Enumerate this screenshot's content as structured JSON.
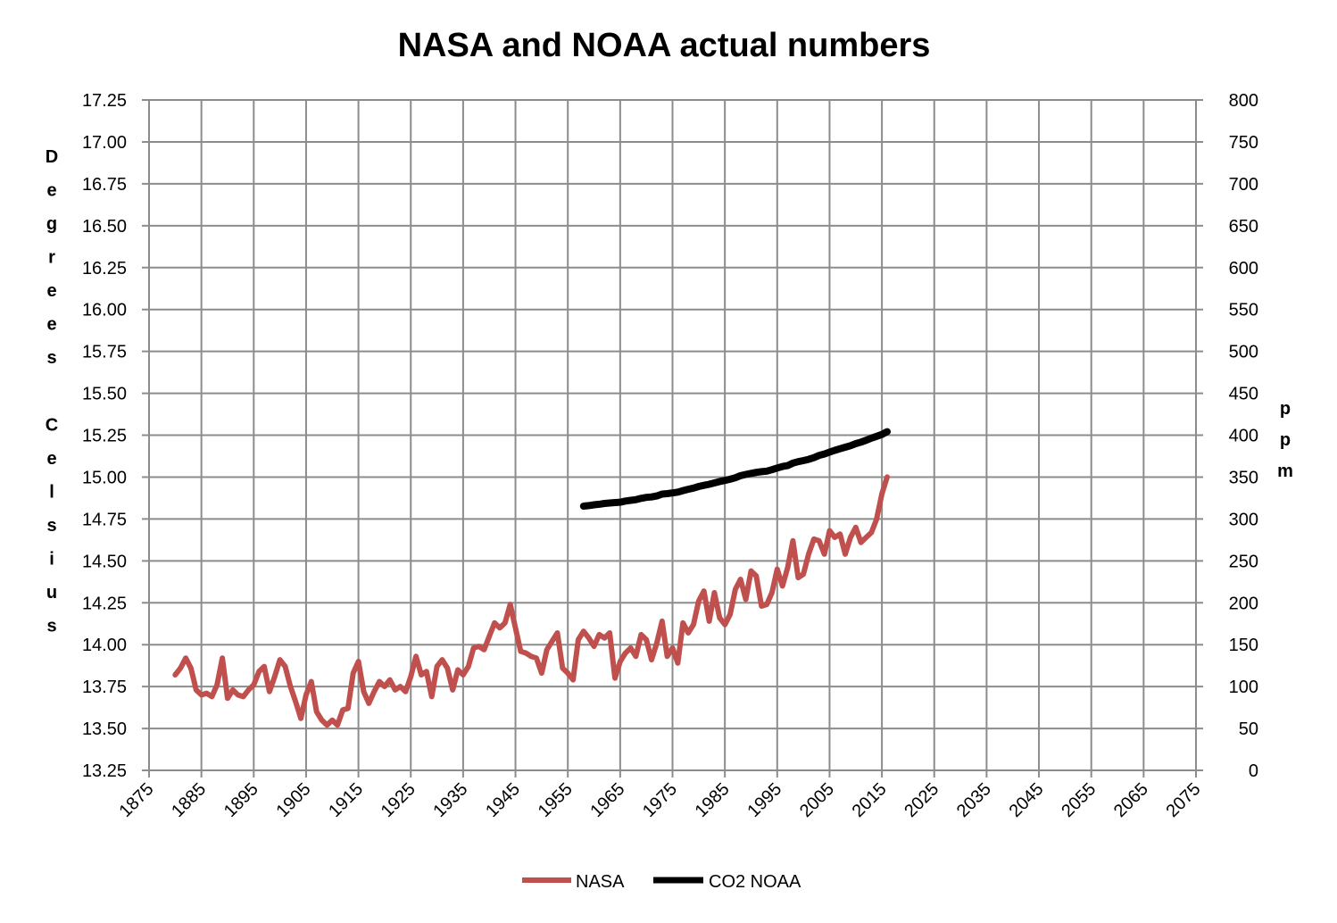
{
  "chart_data": {
    "type": "line",
    "title": "NASA and NOAA actual numbers",
    "y_left": {
      "label": "Degrees Celsius",
      "range": [
        13.25,
        17.25
      ],
      "ticks": [
        "13.25",
        "13.50",
        "13.75",
        "14.00",
        "14.25",
        "14.50",
        "14.75",
        "15.00",
        "15.25",
        "15.50",
        "15.75",
        "16.00",
        "16.25",
        "16.50",
        "16.75",
        "17.00",
        "17.25"
      ]
    },
    "y_right": {
      "label": "ppm",
      "range": [
        0,
        800
      ],
      "ticks": [
        "0",
        "50",
        "100",
        "150",
        "200",
        "250",
        "300",
        "350",
        "400",
        "450",
        "500",
        "550",
        "600",
        "650",
        "700",
        "750",
        "800"
      ]
    },
    "x": {
      "range": [
        1875,
        2075
      ],
      "ticks": [
        "1875",
        "1885",
        "1895",
        "1905",
        "1915",
        "1925",
        "1935",
        "1945",
        "1955",
        "1965",
        "1975",
        "1985",
        "1995",
        "2005",
        "2015",
        "2025",
        "2035",
        "2045",
        "2055",
        "2065",
        "2075"
      ]
    },
    "grid": true,
    "legend_position": "bottom",
    "series": [
      {
        "name": "NASA",
        "axis": "left",
        "color": "#c0504d",
        "points": [
          [
            1880,
            13.82
          ],
          [
            1881,
            13.86
          ],
          [
            1882,
            13.92
          ],
          [
            1883,
            13.86
          ],
          [
            1884,
            13.73
          ],
          [
            1885,
            13.7
          ],
          [
            1886,
            13.71
          ],
          [
            1887,
            13.69
          ],
          [
            1888,
            13.76
          ],
          [
            1889,
            13.92
          ],
          [
            1890,
            13.68
          ],
          [
            1891,
            13.73
          ],
          [
            1892,
            13.7
          ],
          [
            1893,
            13.69
          ],
          [
            1894,
            13.73
          ],
          [
            1895,
            13.76
          ],
          [
            1896,
            13.84
          ],
          [
            1897,
            13.87
          ],
          [
            1898,
            13.72
          ],
          [
            1899,
            13.81
          ],
          [
            1900,
            13.91
          ],
          [
            1901,
            13.87
          ],
          [
            1902,
            13.75
          ],
          [
            1903,
            13.66
          ],
          [
            1904,
            13.56
          ],
          [
            1905,
            13.7
          ],
          [
            1906,
            13.78
          ],
          [
            1907,
            13.6
          ],
          [
            1908,
            13.55
          ],
          [
            1909,
            13.52
          ],
          [
            1910,
            13.55
          ],
          [
            1911,
            13.52
          ],
          [
            1912,
            13.61
          ],
          [
            1913,
            13.62
          ],
          [
            1914,
            13.83
          ],
          [
            1915,
            13.9
          ],
          [
            1916,
            13.72
          ],
          [
            1917,
            13.65
          ],
          [
            1918,
            13.72
          ],
          [
            1919,
            13.78
          ],
          [
            1920,
            13.75
          ],
          [
            1921,
            13.79
          ],
          [
            1922,
            13.73
          ],
          [
            1923,
            13.75
          ],
          [
            1924,
            13.72
          ],
          [
            1925,
            13.81
          ],
          [
            1926,
            13.93
          ],
          [
            1927,
            13.82
          ],
          [
            1928,
            13.84
          ],
          [
            1929,
            13.69
          ],
          [
            1930,
            13.87
          ],
          [
            1931,
            13.91
          ],
          [
            1932,
            13.86
          ],
          [
            1933,
            13.73
          ],
          [
            1934,
            13.85
          ],
          [
            1935,
            13.82
          ],
          [
            1936,
            13.87
          ],
          [
            1937,
            13.98
          ],
          [
            1938,
            13.99
          ],
          [
            1939,
            13.97
          ],
          [
            1940,
            14.05
          ],
          [
            1941,
            14.13
          ],
          [
            1942,
            14.1
          ],
          [
            1943,
            14.13
          ],
          [
            1944,
            14.24
          ],
          [
            1945,
            14.1
          ],
          [
            1946,
            13.96
          ],
          [
            1947,
            13.95
          ],
          [
            1948,
            13.93
          ],
          [
            1949,
            13.92
          ],
          [
            1950,
            13.83
          ],
          [
            1951,
            13.97
          ],
          [
            1952,
            14.02
          ],
          [
            1953,
            14.07
          ],
          [
            1954,
            13.86
          ],
          [
            1955,
            13.83
          ],
          [
            1956,
            13.79
          ],
          [
            1957,
            14.03
          ],
          [
            1958,
            14.08
          ],
          [
            1959,
            14.04
          ],
          [
            1960,
            13.99
          ],
          [
            1961,
            14.06
          ],
          [
            1962,
            14.04
          ],
          [
            1963,
            14.07
          ],
          [
            1964,
            13.8
          ],
          [
            1965,
            13.9
          ],
          [
            1966,
            13.95
          ],
          [
            1967,
            13.98
          ],
          [
            1968,
            13.93
          ],
          [
            1969,
            14.06
          ],
          [
            1970,
            14.03
          ],
          [
            1971,
            13.91
          ],
          [
            1972,
            14.01
          ],
          [
            1973,
            14.14
          ],
          [
            1974,
            13.93
          ],
          [
            1975,
            13.98
          ],
          [
            1976,
            13.89
          ],
          [
            1977,
            14.13
          ],
          [
            1978,
            14.07
          ],
          [
            1979,
            14.12
          ],
          [
            1980,
            14.26
          ],
          [
            1981,
            14.32
          ],
          [
            1982,
            14.14
          ],
          [
            1983,
            14.31
          ],
          [
            1984,
            14.16
          ],
          [
            1985,
            14.12
          ],
          [
            1986,
            14.18
          ],
          [
            1987,
            14.33
          ],
          [
            1988,
            14.39
          ],
          [
            1989,
            14.27
          ],
          [
            1990,
            14.44
          ],
          [
            1991,
            14.41
          ],
          [
            1992,
            14.23
          ],
          [
            1993,
            14.24
          ],
          [
            1994,
            14.31
          ],
          [
            1995,
            14.45
          ],
          [
            1996,
            14.35
          ],
          [
            1997,
            14.46
          ],
          [
            1998,
            14.62
          ],
          [
            1999,
            14.4
          ],
          [
            2000,
            14.42
          ],
          [
            2001,
            14.54
          ],
          [
            2002,
            14.63
          ],
          [
            2003,
            14.62
          ],
          [
            2004,
            14.54
          ],
          [
            2005,
            14.68
          ],
          [
            2006,
            14.64
          ],
          [
            2007,
            14.66
          ],
          [
            2008,
            14.54
          ],
          [
            2009,
            14.64
          ],
          [
            2010,
            14.7
          ],
          [
            2011,
            14.61
          ],
          [
            2012,
            14.64
          ],
          [
            2013,
            14.67
          ],
          [
            2014,
            14.75
          ],
          [
            2015,
            14.9
          ],
          [
            2016,
            15.0
          ]
        ]
      },
      {
        "name": "CO2 NOAA",
        "axis": "right",
        "color": "#000000",
        "points": [
          [
            1958,
            315.3
          ],
          [
            1959,
            316.0
          ],
          [
            1960,
            316.9
          ],
          [
            1961,
            317.6
          ],
          [
            1962,
            318.5
          ],
          [
            1963,
            319.0
          ],
          [
            1964,
            319.6
          ],
          [
            1965,
            320.0
          ],
          [
            1966,
            321.4
          ],
          [
            1967,
            322.2
          ],
          [
            1968,
            323.0
          ],
          [
            1969,
            324.6
          ],
          [
            1970,
            325.7
          ],
          [
            1971,
            326.3
          ],
          [
            1972,
            327.5
          ],
          [
            1973,
            329.7
          ],
          [
            1974,
            330.2
          ],
          [
            1975,
            331.1
          ],
          [
            1976,
            332.0
          ],
          [
            1977,
            333.8
          ],
          [
            1978,
            335.4
          ],
          [
            1979,
            336.8
          ],
          [
            1980,
            338.7
          ],
          [
            1981,
            340.1
          ],
          [
            1982,
            341.4
          ],
          [
            1983,
            343.0
          ],
          [
            1984,
            344.6
          ],
          [
            1985,
            346.0
          ],
          [
            1986,
            347.4
          ],
          [
            1987,
            349.2
          ],
          [
            1988,
            351.6
          ],
          [
            1989,
            353.1
          ],
          [
            1990,
            354.4
          ],
          [
            1991,
            355.6
          ],
          [
            1992,
            356.4
          ],
          [
            1993,
            357.1
          ],
          [
            1994,
            358.8
          ],
          [
            1995,
            360.8
          ],
          [
            1996,
            362.6
          ],
          [
            1997,
            363.7
          ],
          [
            1998,
            366.7
          ],
          [
            1999,
            368.4
          ],
          [
            2000,
            369.6
          ],
          [
            2001,
            371.1
          ],
          [
            2002,
            373.2
          ],
          [
            2003,
            375.8
          ],
          [
            2004,
            377.5
          ],
          [
            2005,
            379.8
          ],
          [
            2006,
            381.9
          ],
          [
            2007,
            383.8
          ],
          [
            2008,
            385.6
          ],
          [
            2009,
            387.4
          ],
          [
            2010,
            389.9
          ],
          [
            2011,
            391.7
          ],
          [
            2012,
            393.9
          ],
          [
            2013,
            396.5
          ],
          [
            2014,
            398.6
          ],
          [
            2015,
            400.8
          ],
          [
            2016,
            404.2
          ]
        ]
      }
    ]
  }
}
